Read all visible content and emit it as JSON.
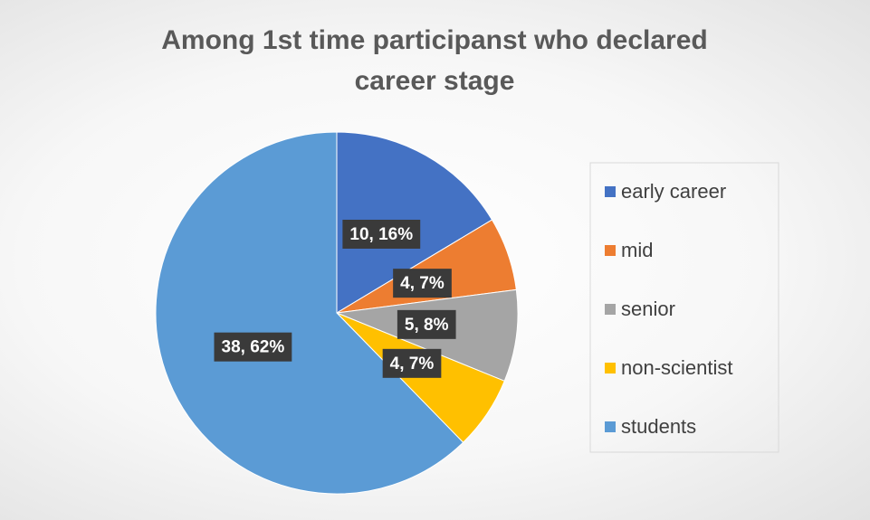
{
  "chart_data": {
    "type": "pie",
    "title": "Among 1st time participanst who declared career stage",
    "categories": [
      "early career",
      "mid",
      "senior",
      "non-scientist",
      "students"
    ],
    "values": [
      10,
      4,
      5,
      4,
      38
    ],
    "value_labels": [
      "10, 16%",
      "4, 7%",
      "5, 8%",
      "4, 7%",
      "38, 62%"
    ],
    "colors": [
      "#4472c4",
      "#ed7d31",
      "#a5a5a5",
      "#ffc000",
      "#5b9bd5"
    ],
    "legend": "right"
  }
}
